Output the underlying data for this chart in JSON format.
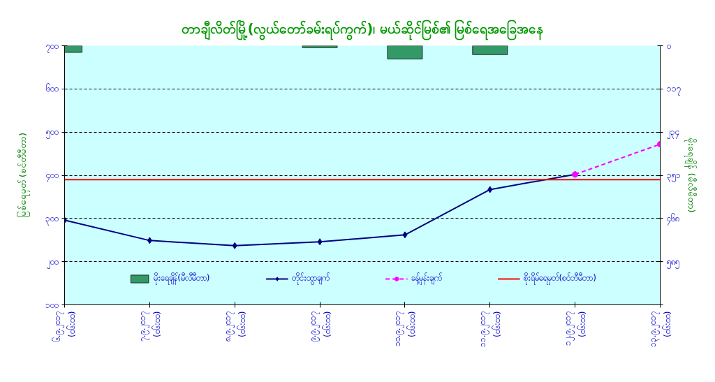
{
  "chart_data": {
    "type": "line",
    "title": "တာချီလိတ်မြို့(လွယ်တော်ခမ်းရပ်ကွက်)၊ မယ်ဆိုင်မြစ်၏ မြစ်ရေအခြေအနေ",
    "ylabel": "မြစ်ရေမှတ် (စင်တီမီတာ)",
    "y2label": "မိုးရေချိန် (မီလီမီတာ)",
    "categories": [
      "၆.၉.၂၀၁၇ (၀၆:၀၀)",
      "၇.၉.၂၀၁၇ (၀၆:၀၀)",
      "၈.၉.၂၀၁၇ (၀၆:၀၀)",
      "၉.၉.၂၀၁၇ (၀၆:၀၀)",
      "၁၀.၉.၂၀၁၇ (၀၆:၀၀)",
      "၁၁.၉.၂၀၁၇ (၀၆:၀၀)",
      "၁၂.၉.၂၀၁၇ (၀၆:၀၀)",
      "၁၃.၉.၂၀၁၇ (၀၆:၀၀)"
    ],
    "series": [
      {
        "name": "မိုးရေချိန်(မီလီမီတာ)",
        "type": "bar",
        "axis": "y2",
        "color": "#339966",
        "values": [
          18,
          null,
          null,
          5,
          36,
          24,
          null,
          null
        ]
      },
      {
        "name": "တိုင်းထွာချက်",
        "color": "#000080",
        "marker": "diamond",
        "line_style": "solid",
        "values": [
          296,
          249,
          237,
          246,
          262,
          367,
          402,
          null
        ]
      },
      {
        "name": "ခန့်မှန်းချက်",
        "color": "#ff00ff",
        "marker": "circle",
        "line_style": "dashed",
        "values": [
          null,
          null,
          null,
          null,
          null,
          null,
          402,
          472
        ]
      }
    ],
    "ref_lines": [
      {
        "axis": "y",
        "value": 390,
        "label": "စိုးရိမ်ရေမှတ်(စင်တီမီတာ)",
        "color": "#ff0000"
      }
    ],
    "ylim": [
      100,
      700
    ],
    "yticks": [
      {
        "value": 100,
        "label": "၁၀၀"
      },
      {
        "value": 200,
        "label": "၂၀၀"
      },
      {
        "value": 300,
        "label": "၃၀၀"
      },
      {
        "value": 400,
        "label": "၄၀၀"
      },
      {
        "value": 500,
        "label": "၅၀၀"
      },
      {
        "value": 600,
        "label": "၆၀၀"
      },
      {
        "value": 700,
        "label": "၇၀၀"
      }
    ],
    "y2lim": [
      702,
      0
    ],
    "y2ticks": [
      {
        "value": 0,
        "label": "၀"
      },
      {
        "value": 117,
        "label": "၁၁၇"
      },
      {
        "value": 234,
        "label": "၂၃၄"
      },
      {
        "value": 351,
        "label": "၃၅၁"
      },
      {
        "value": 468,
        "label": "၄၆၈"
      },
      {
        "value": 585,
        "label": "၅၈၅"
      },
      {
        "value": 702,
        "label": null
      }
    ],
    "grid": "y",
    "legend": "bottom"
  }
}
